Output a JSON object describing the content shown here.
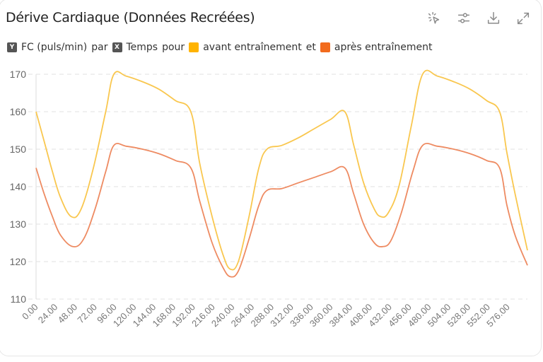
{
  "header": {
    "title": "Dérive Cardiaque (Données Recréées)",
    "toolbar": [
      {
        "name": "select-icon",
        "label": "Sélection"
      },
      {
        "name": "filter-settings-icon",
        "label": "Réglages"
      },
      {
        "name": "download-icon",
        "label": "Télécharger"
      },
      {
        "name": "expand-icon",
        "label": "Agrandir"
      }
    ]
  },
  "legend": {
    "y_badge": "Y",
    "y_label": "FC (puls/min)",
    "by": "par",
    "x_badge": "X",
    "x_label": "Temps",
    "for": "pour",
    "and": "et",
    "series": [
      {
        "name": "avant entraînement",
        "color": "#FFB300"
      },
      {
        "name": "après entraînement",
        "color": "#F26B1D"
      }
    ]
  },
  "colors": {
    "before_line": "#F9C74F",
    "after_line": "#EE8B62",
    "grid": "#e2e2e2",
    "axis": "#dddddd"
  },
  "chart_data": {
    "type": "line",
    "title": "Dérive Cardiaque (Données Recréées)",
    "xlabel": "Temps",
    "ylabel": "FC (puls/min)",
    "ylim": [
      110,
      170
    ],
    "yticks": [
      110,
      120,
      130,
      140,
      150,
      160,
      170
    ],
    "xlim": [
      0,
      600
    ],
    "xticks": [
      "0.00",
      "24.00",
      "48.00",
      "72.00",
      "96.00",
      "120.00",
      "144.00",
      "168.00",
      "192.00",
      "216.00",
      "240.00",
      "264.00",
      "288.00",
      "312.00",
      "336.00",
      "360.00",
      "384.00",
      "408.00",
      "432.00",
      "456.00",
      "480.00",
      "504.00",
      "528.00",
      "552.00",
      "576.00"
    ],
    "grid": true,
    "legend_position": "top",
    "series": [
      {
        "name": "avant entraînement",
        "x": [
          0,
          10,
          20,
          30,
          43,
          55,
          70,
          85,
          95,
          110,
          130,
          150,
          170,
          189,
          200,
          215,
          228,
          237,
          247,
          260,
          272,
          282,
          300,
          320,
          340,
          360,
          377,
          388,
          400,
          413,
          421,
          430,
          443,
          458,
          472,
          490,
          510,
          530,
          550,
          566,
          575,
          585,
          600
        ],
        "values": [
          160,
          152,
          144,
          137,
          132,
          134,
          145,
          160,
          170,
          169.5,
          168,
          166,
          163,
          160,
          146,
          132,
          122,
          118,
          120,
          132,
          145,
          150,
          151,
          153,
          155.5,
          158,
          160,
          151,
          141,
          134,
          132,
          133,
          140,
          156,
          170,
          169.5,
          168,
          166,
          163,
          160,
          149,
          138,
          123
        ]
      },
      {
        "name": "après entraînement",
        "x": [
          0,
          10,
          20,
          30,
          45,
          58,
          72,
          85,
          95,
          110,
          130,
          150,
          170,
          189,
          200,
          215,
          228,
          237,
          247,
          260,
          272,
          282,
          300,
          320,
          340,
          360,
          377,
          388,
          400,
          413,
          423,
          433,
          446,
          460,
          472,
          490,
          510,
          530,
          550,
          566,
          575,
          585,
          600
        ],
        "values": [
          145,
          138,
          132,
          127,
          124,
          126,
          134,
          144,
          151,
          150.8,
          150,
          148.8,
          147,
          145,
          136,
          125,
          118.5,
          116,
          117.5,
          126,
          135,
          139,
          139.5,
          141,
          142.5,
          144,
          145,
          138,
          130,
          125,
          124,
          125.5,
          133,
          144,
          151,
          150.8,
          150,
          148.8,
          147,
          145,
          135,
          127,
          119
        ]
      }
    ]
  }
}
